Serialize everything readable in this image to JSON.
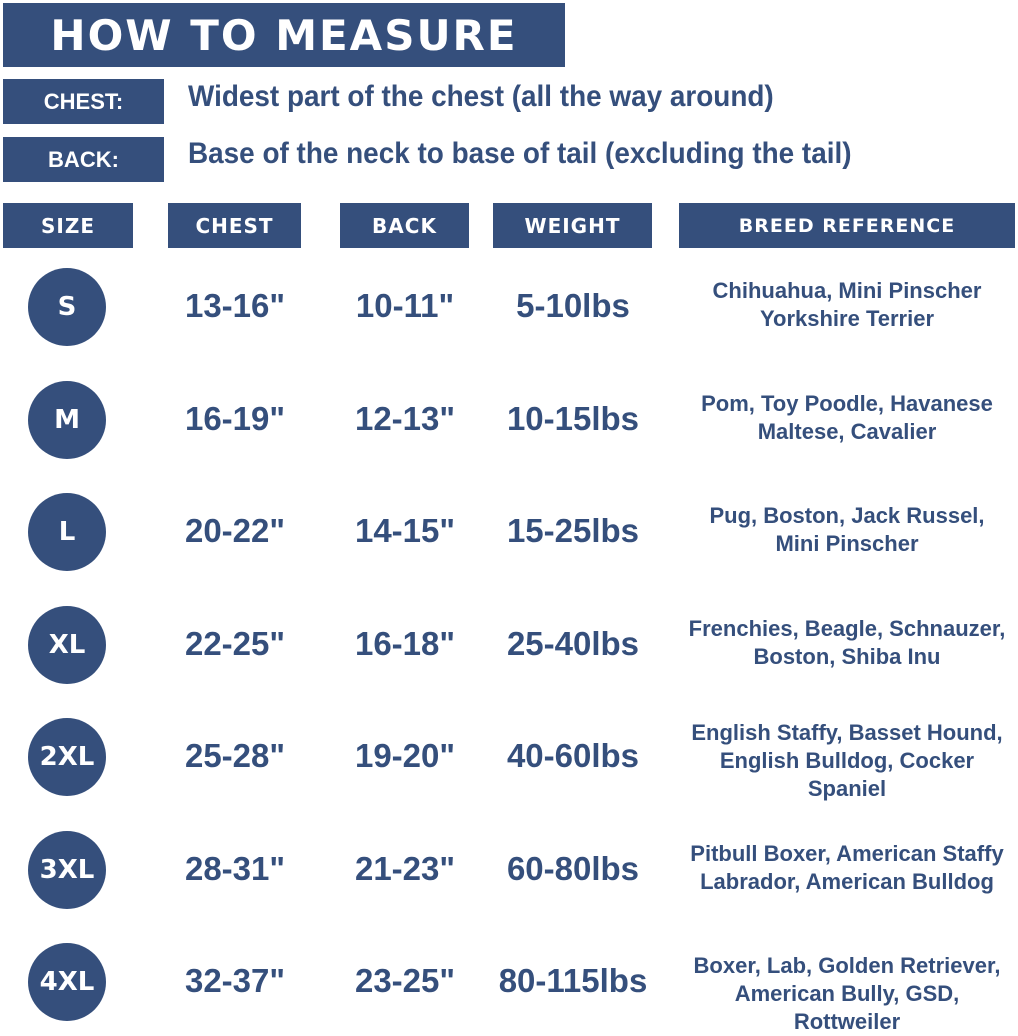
{
  "title": "HOW TO MEASURE",
  "measure": {
    "chest_label": "CHEST:",
    "chest_desc": "Widest part of the chest (all the way around)",
    "back_label": "BACK:",
    "back_desc": "Base of the neck to base of tail (excluding the tail)"
  },
  "columns": [
    "SIZE",
    "CHEST",
    "BACK",
    "WEIGHT",
    "BREED REFERENCE"
  ],
  "rows": [
    {
      "size": "S",
      "chest": "13-16\"",
      "back": "10-11\"",
      "weight": "5-10lbs",
      "breeds": [
        "Chihuahua, Mini Pinscher",
        "Yorkshire Terrier"
      ]
    },
    {
      "size": "M",
      "chest": "16-19\"",
      "back": "12-13\"",
      "weight": "10-15lbs",
      "breeds": [
        "Pom, Toy Poodle, Havanese",
        "Maltese, Cavalier"
      ]
    },
    {
      "size": "L",
      "chest": "20-22\"",
      "back": "14-15\"",
      "weight": "15-25lbs",
      "breeds": [
        "Pug, Boston, Jack Russel,",
        "Mini Pinscher"
      ]
    },
    {
      "size": "XL",
      "chest": "22-25\"",
      "back": "16-18\"",
      "weight": "25-40lbs",
      "breeds": [
        "Frenchies, Beagle, Schnauzer,",
        "Boston, Shiba Inu"
      ]
    },
    {
      "size": "2XL",
      "chest": "25-28\"",
      "back": "19-20\"",
      "weight": "40-60lbs",
      "breeds": [
        "English Staffy, Basset Hound,",
        "English Bulldog, Cocker",
        "Spaniel"
      ]
    },
    {
      "size": "3XL",
      "chest": "28-31\"",
      "back": "21-23\"",
      "weight": "60-80lbs",
      "breeds": [
        "Pitbull Boxer, American Staffy",
        "Labrador, American Bulldog"
      ]
    },
    {
      "size": "4XL",
      "chest": "32-37\"",
      "back": "23-25\"",
      "weight": "80-115lbs",
      "breeds": [
        "Boxer, Lab, Golden Retriever,",
        "American Bully, GSD, Rottweiler"
      ]
    }
  ],
  "colors": {
    "brand": "#354f7c",
    "text": "#354f7c",
    "background": "#ffffff"
  }
}
